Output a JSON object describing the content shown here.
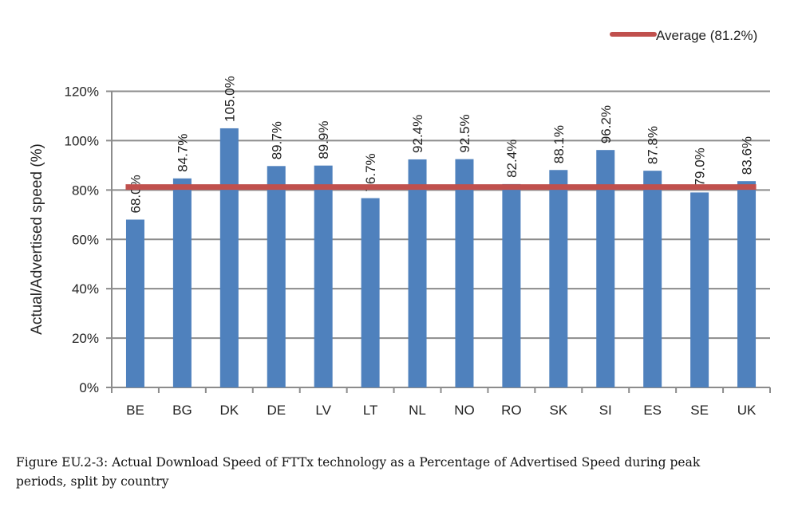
{
  "chart_data": {
    "type": "bar",
    "categories": [
      "BE",
      "BG",
      "DK",
      "DE",
      "LV",
      "LT",
      "NL",
      "NO",
      "RO",
      "SK",
      "SI",
      "ES",
      "SE",
      "UK"
    ],
    "values": [
      68.0,
      84.7,
      105.0,
      89.7,
      89.9,
      76.7,
      92.4,
      92.5,
      82.4,
      88.1,
      96.2,
      87.8,
      79.0,
      83.6
    ],
    "data_labels": [
      "68.0%",
      "84.7%",
      "105.0%",
      "89.7%",
      "89.9%",
      "76.7%",
      "92.4%",
      "92.5%",
      "82.4%",
      "88.1%",
      "96.2%",
      "87.8%",
      "79.0%",
      "83.6%"
    ],
    "reference_line": {
      "name": "Average (81.2%)",
      "value": 81.2,
      "color": "#C0504D"
    },
    "bar_color": "#4F81BD",
    "ylabel": "Actual/Advertised speed (%)",
    "xlabel": "",
    "ylim": [
      0,
      120
    ],
    "yticks": [
      0,
      20,
      40,
      60,
      80,
      100,
      120
    ],
    "ytick_labels": [
      "0%",
      "20%",
      "40%",
      "60%",
      "80%",
      "100%",
      "120%"
    ],
    "grid": true,
    "legend_position": "top-right"
  },
  "caption": {
    "line1": "Figure EU.2-3: Actual Download Speed of FTTx technology as a Percentage of Advertised Speed during peak",
    "line2": "periods, split by country"
  }
}
